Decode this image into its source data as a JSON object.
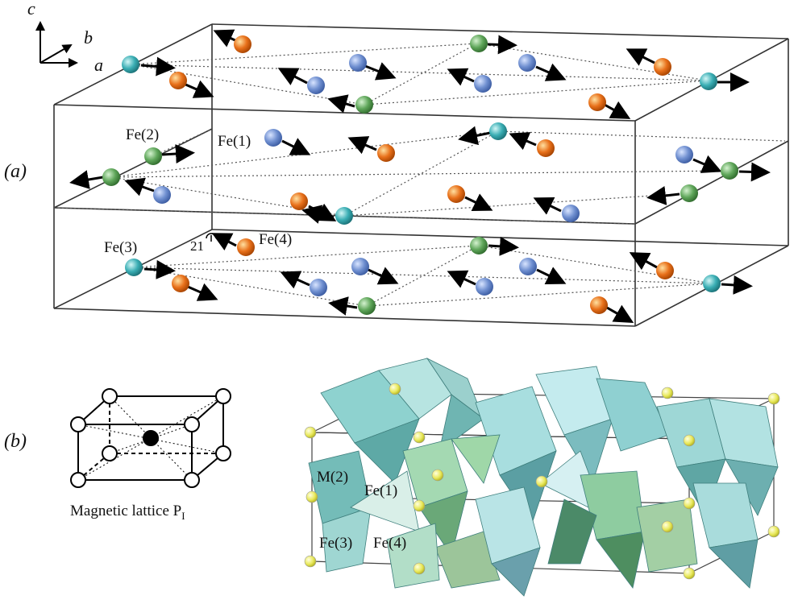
{
  "panels": {
    "a": {
      "label": "(a)"
    },
    "b": {
      "label": "(b)"
    }
  },
  "axes_labels": {
    "a": "a",
    "b": "b",
    "c": "c"
  },
  "panel_a": {
    "atom_labels": {
      "fe1": "Fe(1)",
      "fe2": "Fe(2)",
      "fe3": "Fe(3)",
      "fe4": "Fe(4)"
    },
    "screw_axis_label": "21"
  },
  "panel_b": {
    "lattice_caption": "Magnetic lattice P",
    "lattice_caption_sub": "I",
    "polyhedra_labels": {
      "m2": "M(2)",
      "fe1": "Fe(1)",
      "fe3": "Fe(3)",
      "fe4": "Fe(4)"
    }
  },
  "colors": {
    "fe1_atom": "#6f8fd0",
    "fe2_atom": "#5fa65a",
    "fe3_atom": "#3aaeb4",
    "fe4_atom": "#e8701a",
    "yellow_atom": "#e8e85a",
    "octahedron": "#7fc8c6",
    "tetrahedron": "#9cc59a"
  },
  "icons": {
    "spin": "arrow-icon"
  }
}
